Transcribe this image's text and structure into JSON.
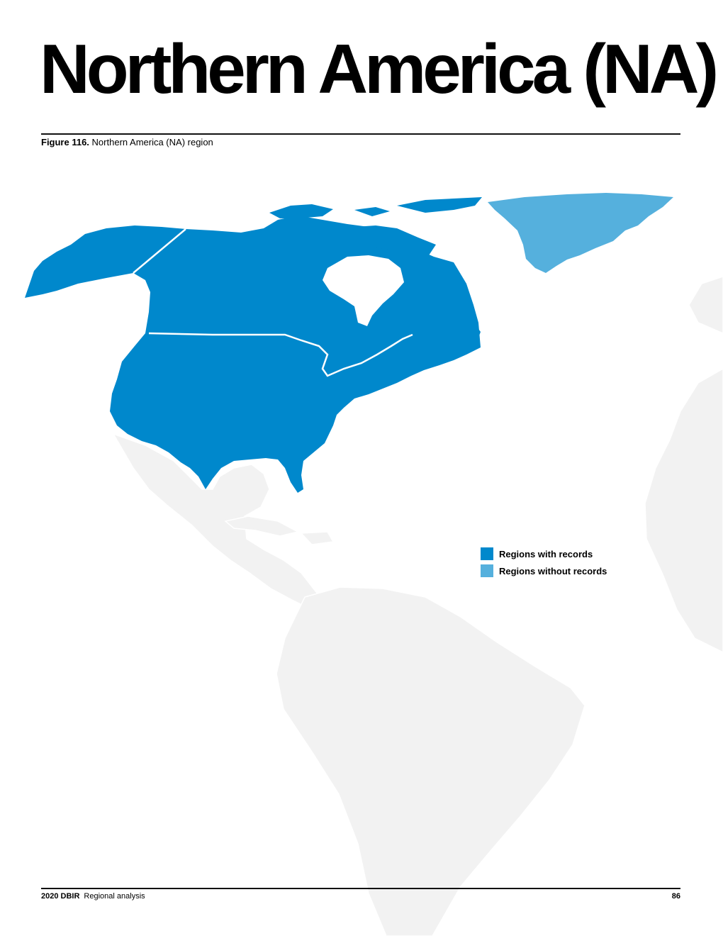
{
  "page": {
    "title": "Northern America (NA)",
    "figure_label": "Figure 116.",
    "figure_caption": "Northern America (NA) region"
  },
  "legend": {
    "items": [
      {
        "label": "Regions with records",
        "color": "#0088cc"
      },
      {
        "label": "Regions without records",
        "color": "#55b0dd"
      }
    ]
  },
  "colors": {
    "with_records": "#0088cc",
    "without_records": "#55b0dd",
    "background_land": "#f2f2f2"
  },
  "footer": {
    "report": "2020 DBIR",
    "section": "Regional analysis",
    "page_number": "86"
  }
}
